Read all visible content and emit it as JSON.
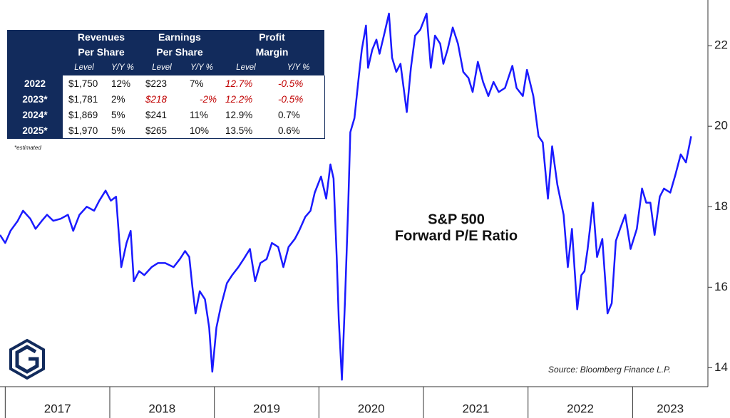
{
  "chart_data": {
    "type": "line",
    "annotation": [
      "S&P 500",
      "Forward P/E Ratio"
    ],
    "source": "Source: Bloomberg Finance L.P.",
    "color": "#1a1aff",
    "xlim": [
      2016.95,
      2023.72
    ],
    "xticks": [
      {
        "value": 2017,
        "label": "2017"
      },
      {
        "value": 2018,
        "label": "2018"
      },
      {
        "value": 2019,
        "label": "2019"
      },
      {
        "value": 2020,
        "label": "2020"
      },
      {
        "value": 2021,
        "label": "2021"
      },
      {
        "value": 2022,
        "label": "2022"
      },
      {
        "value": 2023,
        "label": "2023"
      }
    ],
    "ylim": [
      13.6,
      23.1
    ],
    "yticks": [
      14,
      16,
      18,
      20,
      22
    ],
    "grid": false,
    "x": [
      2016.95,
      2017.0,
      2017.05,
      2017.12,
      2017.17,
      2017.24,
      2017.29,
      2017.35,
      2017.4,
      2017.46,
      2017.53,
      2017.6,
      2017.65,
      2017.71,
      2017.78,
      2017.85,
      2017.9,
      2017.96,
      2018.01,
      2018.06,
      2018.11,
      2018.16,
      2018.2,
      2018.23,
      2018.28,
      2018.33,
      2018.4,
      2018.46,
      2018.53,
      2018.61,
      2018.67,
      2018.72,
      2018.76,
      2018.79,
      2018.82,
      2018.86,
      2018.91,
      2018.95,
      2018.98,
      2019.02,
      2019.06,
      2019.12,
      2019.17,
      2019.23,
      2019.28,
      2019.34,
      2019.39,
      2019.44,
      2019.5,
      2019.55,
      2019.61,
      2019.66,
      2019.71,
      2019.77,
      2019.81,
      2019.87,
      2019.92,
      2019.96,
      2020.02,
      2020.07,
      2020.11,
      2020.14,
      2020.17,
      2020.19,
      2020.22,
      2020.25,
      2020.28,
      2020.3,
      2020.34,
      2020.38,
      2020.41,
      2020.45,
      2020.47,
      2020.51,
      2020.55,
      2020.58,
      2020.63,
      2020.67,
      2020.7,
      2020.74,
      2020.78,
      2020.84,
      2020.88,
      2020.92,
      2020.97,
      2021.03,
      2021.07,
      2021.11,
      2021.16,
      2021.19,
      2021.23,
      2021.28,
      2021.33,
      2021.38,
      2021.43,
      2021.47,
      2021.52,
      2021.57,
      2021.62,
      2021.67,
      2021.72,
      2021.78,
      2021.85,
      2021.89,
      2021.95,
      2021.99,
      2022.05,
      2022.1,
      2022.14,
      2022.19,
      2022.23,
      2022.28,
      2022.34,
      2022.38,
      2022.42,
      2022.47,
      2022.51,
      2022.54,
      2022.57,
      2022.62,
      2022.66,
      2022.71,
      2022.76,
      2022.8,
      2022.84,
      2022.88,
      2022.93,
      2022.98,
      2023.04,
      2023.09,
      2023.13,
      2023.17,
      2023.21,
      2023.26,
      2023.3,
      2023.36,
      2023.41,
      2023.46,
      2023.51,
      2023.56
    ],
    "values": [
      17.3,
      17.1,
      17.4,
      17.65,
      17.9,
      17.7,
      17.45,
      17.65,
      17.8,
      17.65,
      17.7,
      17.8,
      17.4,
      17.8,
      18.0,
      17.9,
      18.15,
      18.4,
      18.15,
      18.25,
      16.5,
      17.1,
      17.4,
      16.15,
      16.4,
      16.3,
      16.5,
      16.6,
      16.6,
      16.5,
      16.7,
      16.9,
      16.75,
      16.0,
      15.35,
      15.9,
      15.7,
      15.0,
      13.9,
      15.0,
      15.5,
      16.1,
      16.3,
      16.5,
      16.7,
      16.95,
      16.15,
      16.6,
      16.7,
      17.1,
      17.0,
      16.5,
      17.0,
      17.2,
      17.4,
      17.75,
      17.9,
      18.35,
      18.75,
      18.2,
      19.05,
      18.7,
      16.75,
      15.2,
      13.7,
      15.7,
      18.0,
      19.85,
      20.2,
      21.2,
      21.9,
      22.5,
      21.45,
      21.9,
      22.15,
      21.8,
      22.35,
      22.8,
      21.7,
      21.35,
      21.55,
      20.35,
      21.45,
      22.25,
      22.4,
      22.8,
      21.45,
      22.25,
      22.05,
      21.55,
      21.9,
      22.45,
      22.05,
      21.35,
      21.2,
      20.85,
      21.6,
      21.1,
      20.75,
      21.1,
      20.85,
      20.95,
      21.5,
      20.95,
      20.75,
      21.4,
      20.75,
      19.75,
      19.6,
      18.2,
      19.5,
      18.55,
      17.8,
      16.5,
      17.45,
      15.45,
      16.3,
      16.4,
      16.95,
      18.1,
      16.75,
      17.2,
      15.35,
      15.6,
      17.15,
      17.45,
      17.8,
      16.95,
      17.45,
      18.45,
      18.1,
      18.1,
      17.3,
      18.25,
      18.45,
      18.35,
      18.8,
      19.3,
      19.1,
      19.75
    ]
  },
  "table": {
    "groups": [
      [
        "Revenues",
        "Per Share"
      ],
      [
        "Earnings",
        "Per Share"
      ],
      [
        "Profit",
        "Margin"
      ]
    ],
    "subheaders": [
      "Level",
      "Y/Y %",
      "Level",
      "Y/Y %",
      "Level",
      "Y/Y %"
    ],
    "rows": [
      {
        "label": "2022",
        "cells": [
          "$1,750",
          "12%",
          "$223",
          "7%",
          "12.7%",
          "-0.5%"
        ]
      },
      {
        "label": "2023*",
        "cells": [
          "$1,781",
          "2%",
          "$218",
          "-2%",
          "12.2%",
          "-0.5%"
        ]
      },
      {
        "label": "2024*",
        "cells": [
          "$1,869",
          "5%",
          "$241",
          "11%",
          "12.9%",
          "0.7%"
        ]
      },
      {
        "label": "2025*",
        "cells": [
          "$1,970",
          "5%",
          "$265",
          "10%",
          "13.5%",
          "0.6%"
        ]
      }
    ],
    "note": "*estimated"
  }
}
